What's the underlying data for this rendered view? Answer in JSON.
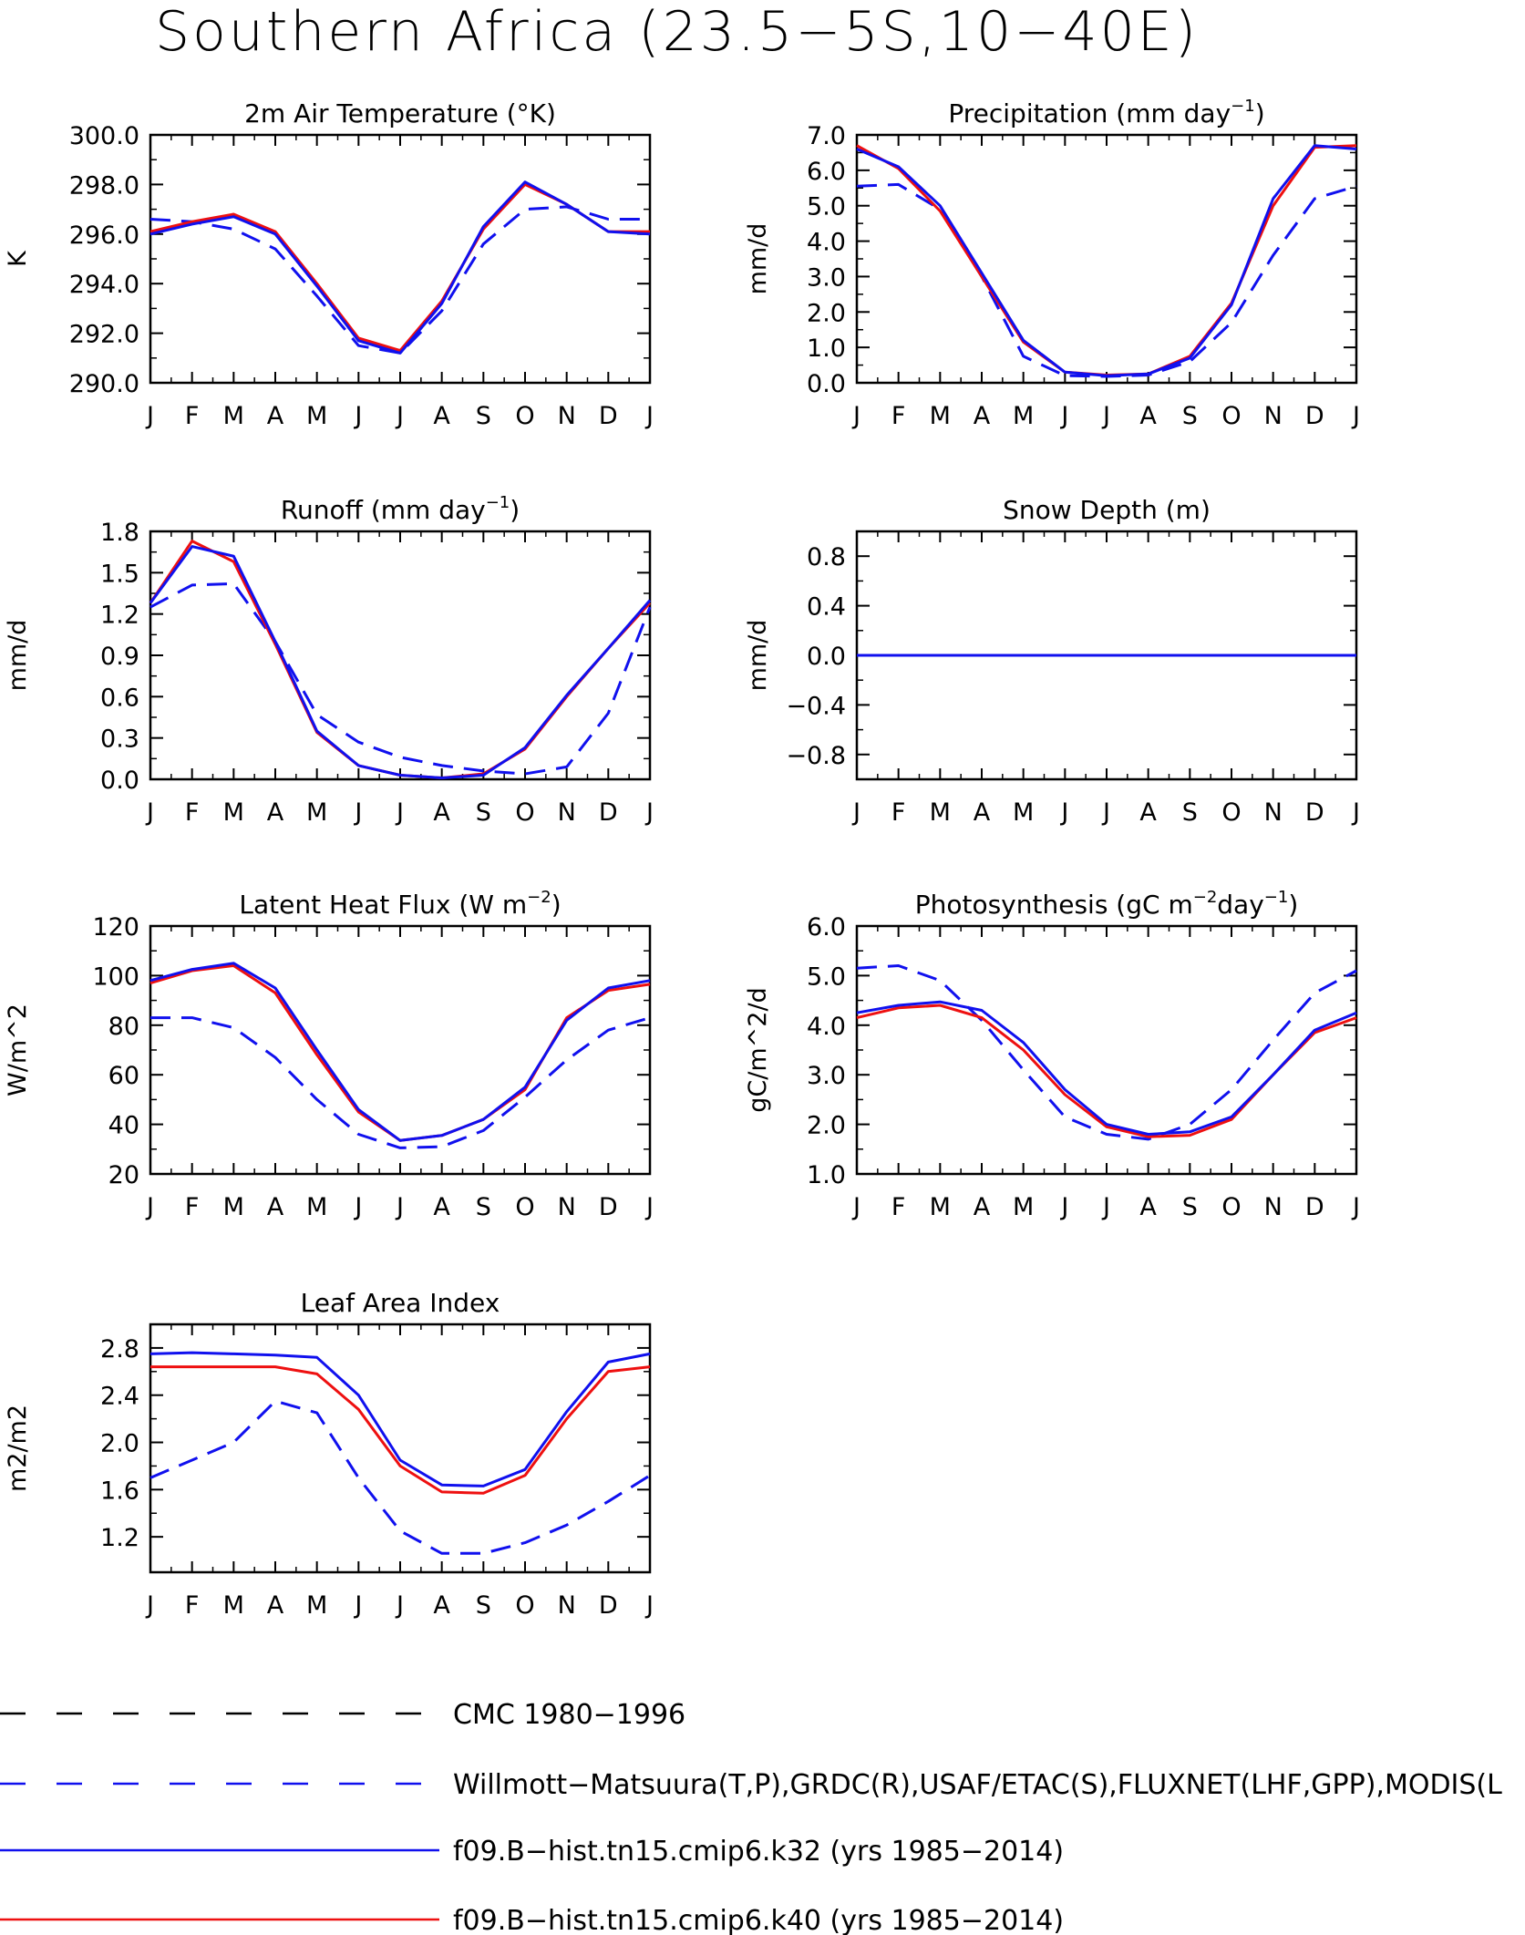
{
  "title": "Southern Africa (23.5−5S,10−40E)",
  "months": [
    "J",
    "F",
    "M",
    "A",
    "M",
    "J",
    "J",
    "A",
    "S",
    "O",
    "N",
    "D",
    "J"
  ],
  "colors": {
    "obs": "#1010ee",
    "k32": "#1010ee",
    "k40": "#ee1010",
    "cmc": "#000000",
    "axis": "#000000"
  },
  "legend": [
    {
      "key": "cmc",
      "label": "CMC 1980−1996",
      "style": "dashed",
      "color": "#000000"
    },
    {
      "key": "obs",
      "label": "Willmott−Matsuura(T,P),GRDC(R),USAF/ETAC(S),FLUXNET(LHF,GPP),MODIS(L",
      "style": "dashed",
      "color": "#1010ee"
    },
    {
      "key": "k32",
      "label": "f09.B−hist.tn15.cmip6.k32 (yrs 1985−2014)",
      "style": "solid",
      "color": "#1010ee"
    },
    {
      "key": "k40",
      "label": "f09.B−hist.tn15.cmip6.k40 (yrs 1985−2014)",
      "style": "solid",
      "color": "#ee1010"
    }
  ],
  "chart_data": [
    {
      "type": "line",
      "title": "2m Air Temperature (°K)",
      "ylabel": "K",
      "ylim": [
        290,
        300
      ],
      "yticks": [
        "290.0",
        "292.0",
        "294.0",
        "296.0",
        "298.0",
        "300.0"
      ],
      "ytick_values": [
        290,
        292,
        294,
        296,
        298,
        300
      ],
      "x": [
        "J",
        "F",
        "M",
        "A",
        "M",
        "J",
        "J",
        "A",
        "S",
        "O",
        "N",
        "D",
        "J"
      ],
      "series": [
        {
          "key": "obs",
          "values": [
            296.6,
            296.5,
            296.2,
            295.4,
            293.5,
            291.5,
            291.2,
            292.9,
            295.6,
            297.0,
            297.1,
            296.6,
            296.6
          ]
        },
        {
          "key": "k32",
          "values": [
            296.0,
            296.4,
            296.7,
            296.0,
            293.9,
            291.7,
            291.2,
            293.2,
            296.3,
            298.1,
            297.2,
            296.1,
            296.0
          ]
        },
        {
          "key": "k40",
          "values": [
            296.1,
            296.5,
            296.8,
            296.1,
            294.0,
            291.8,
            291.3,
            293.3,
            296.2,
            298.0,
            297.2,
            296.1,
            296.1
          ]
        }
      ]
    },
    {
      "type": "line",
      "title": "Precipitation (mm day",
      "title_sup": "−1",
      "title_end": ")",
      "ylabel": "mm/d",
      "ylim": [
        0,
        7
      ],
      "yticks": [
        "0.0",
        "1.0",
        "2.0",
        "3.0",
        "4.0",
        "5.0",
        "6.0",
        "7.0"
      ],
      "ytick_values": [
        0,
        1,
        2,
        3,
        4,
        5,
        6,
        7
      ],
      "x": [
        "J",
        "F",
        "M",
        "A",
        "M",
        "J",
        "J",
        "A",
        "S",
        "O",
        "N",
        "D",
        "J"
      ],
      "series": [
        {
          "key": "obs",
          "values": [
            5.55,
            5.6,
            4.9,
            3.0,
            0.75,
            0.2,
            0.18,
            0.22,
            0.6,
            1.7,
            3.6,
            5.2,
            5.55
          ]
        },
        {
          "key": "k32",
          "values": [
            6.6,
            6.1,
            5.0,
            3.1,
            1.2,
            0.3,
            0.2,
            0.25,
            0.7,
            2.2,
            5.2,
            6.7,
            6.6
          ]
        },
        {
          "key": "k40",
          "values": [
            6.7,
            6.05,
            4.85,
            3.0,
            1.15,
            0.3,
            0.22,
            0.25,
            0.75,
            2.25,
            5.0,
            6.65,
            6.7
          ]
        }
      ]
    },
    {
      "type": "line",
      "title": "Runoff (mm day",
      "title_sup": "−1",
      "title_end": ")",
      "ylabel": "mm/d",
      "ylim": [
        0,
        1.8
      ],
      "yticks": [
        "0.0",
        "0.3",
        "0.6",
        "0.9",
        "1.2",
        "1.5",
        "1.8"
      ],
      "ytick_values": [
        0,
        0.3,
        0.6,
        0.9,
        1.2,
        1.5,
        1.8
      ],
      "x": [
        "J",
        "F",
        "M",
        "A",
        "M",
        "J",
        "J",
        "A",
        "S",
        "O",
        "N",
        "D",
        "J"
      ],
      "series": [
        {
          "key": "obs",
          "values": [
            1.25,
            1.41,
            1.42,
            1.0,
            0.47,
            0.27,
            0.16,
            0.1,
            0.06,
            0.04,
            0.09,
            0.48,
            1.25
          ]
        },
        {
          "key": "k32",
          "values": [
            1.28,
            1.69,
            1.62,
            1.0,
            0.35,
            0.1,
            0.03,
            0.01,
            0.03,
            0.23,
            0.61,
            0.95,
            1.3
          ]
        },
        {
          "key": "k40",
          "values": [
            1.28,
            1.73,
            1.58,
            0.98,
            0.34,
            0.1,
            0.03,
            0.01,
            0.04,
            0.22,
            0.6,
            0.95,
            1.28
          ]
        }
      ]
    },
    {
      "type": "line",
      "title": "Snow Depth (m)",
      "ylabel": "mm/d",
      "ylim": [
        -1,
        1
      ],
      "yticks": [
        "−0.8",
        "−0.4",
        "0.0",
        "0.4",
        "0.8"
      ],
      "ytick_values": [
        -0.8,
        -0.4,
        0,
        0.4,
        0.8
      ],
      "x": [
        "J",
        "F",
        "M",
        "A",
        "M",
        "J",
        "J",
        "A",
        "S",
        "O",
        "N",
        "D",
        "J"
      ],
      "series": [
        {
          "key": "cmc",
          "values": [
            0,
            0,
            0,
            0,
            0,
            0,
            0,
            0,
            0,
            0,
            0,
            0,
            0
          ]
        },
        {
          "key": "k32",
          "values": [
            0,
            0,
            0,
            0,
            0,
            0,
            0,
            0,
            0,
            0,
            0,
            0,
            0
          ]
        },
        {
          "key": "k40",
          "values": [
            0,
            0,
            0,
            0,
            0,
            0,
            0,
            0,
            0,
            0,
            0,
            0,
            0
          ]
        }
      ]
    },
    {
      "type": "line",
      "title": "Latent Heat Flux (W m",
      "title_sup": "−2",
      "title_end": ")",
      "ylabel": "W/m^2",
      "ylim": [
        20,
        120
      ],
      "yticks": [
        "20",
        "40",
        "60",
        "80",
        "100",
        "120"
      ],
      "ytick_values": [
        20,
        40,
        60,
        80,
        100,
        120
      ],
      "x": [
        "J",
        "F",
        "M",
        "A",
        "M",
        "J",
        "J",
        "A",
        "S",
        "O",
        "N",
        "D",
        "J"
      ],
      "series": [
        {
          "key": "obs",
          "values": [
            83,
            83,
            79,
            67,
            50,
            36,
            30.5,
            31,
            37.5,
            51,
            66,
            78,
            83
          ]
        },
        {
          "key": "k32",
          "values": [
            98,
            102.5,
            105,
            95,
            70,
            46,
            33.5,
            35.5,
            42,
            55,
            82,
            95,
            98
          ]
        },
        {
          "key": "k40",
          "values": [
            97,
            102,
            104,
            93,
            68,
            45,
            33.5,
            35.5,
            42,
            54,
            83,
            94,
            96.5
          ]
        }
      ]
    },
    {
      "type": "line",
      "title": "Photosynthesis (gC m",
      "title_sup": "−2",
      "title_mid": "day",
      "title_sup2": "−1",
      "title_end": ")",
      "ylabel": "gC/m^2/d",
      "ylim": [
        1,
        6
      ],
      "yticks": [
        "1.0",
        "2.0",
        "3.0",
        "4.0",
        "5.0",
        "6.0"
      ],
      "ytick_values": [
        1,
        2,
        3,
        4,
        5,
        6
      ],
      "x": [
        "J",
        "F",
        "M",
        "A",
        "M",
        "J",
        "J",
        "A",
        "S",
        "O",
        "N",
        "D",
        "J"
      ],
      "series": [
        {
          "key": "obs",
          "values": [
            5.15,
            5.2,
            4.9,
            4.1,
            3.1,
            2.15,
            1.8,
            1.7,
            2.0,
            2.7,
            3.7,
            4.65,
            5.1
          ]
        },
        {
          "key": "k32",
          "values": [
            4.25,
            4.4,
            4.47,
            4.3,
            3.65,
            2.7,
            2.0,
            1.8,
            1.85,
            2.15,
            3.0,
            3.9,
            4.25
          ]
        },
        {
          "key": "k40",
          "values": [
            4.15,
            4.35,
            4.4,
            4.15,
            3.5,
            2.6,
            1.95,
            1.75,
            1.78,
            2.1,
            3.0,
            3.85,
            4.15
          ]
        }
      ]
    },
    {
      "type": "line",
      "title": "Leaf Area Index",
      "ylabel": "m2/m2",
      "ylim": [
        0.9,
        3.0
      ],
      "yticks": [
        "1.2",
        "1.6",
        "2.0",
        "2.4",
        "2.8"
      ],
      "ytick_values": [
        1.2,
        1.6,
        2.0,
        2.4,
        2.8
      ],
      "x": [
        "J",
        "F",
        "M",
        "A",
        "M",
        "J",
        "J",
        "A",
        "S",
        "O",
        "N",
        "D",
        "J"
      ],
      "series": [
        {
          "key": "obs",
          "values": [
            1.7,
            1.85,
            2.0,
            2.35,
            2.25,
            1.7,
            1.25,
            1.06,
            1.06,
            1.15,
            1.3,
            1.5,
            1.72
          ]
        },
        {
          "key": "k32",
          "values": [
            2.75,
            2.76,
            2.75,
            2.74,
            2.72,
            2.4,
            1.85,
            1.64,
            1.63,
            1.77,
            2.26,
            2.68,
            2.75
          ]
        },
        {
          "key": "k40",
          "values": [
            2.64,
            2.64,
            2.64,
            2.64,
            2.58,
            2.28,
            1.8,
            1.58,
            1.57,
            1.72,
            2.2,
            2.6,
            2.64
          ]
        }
      ]
    }
  ]
}
